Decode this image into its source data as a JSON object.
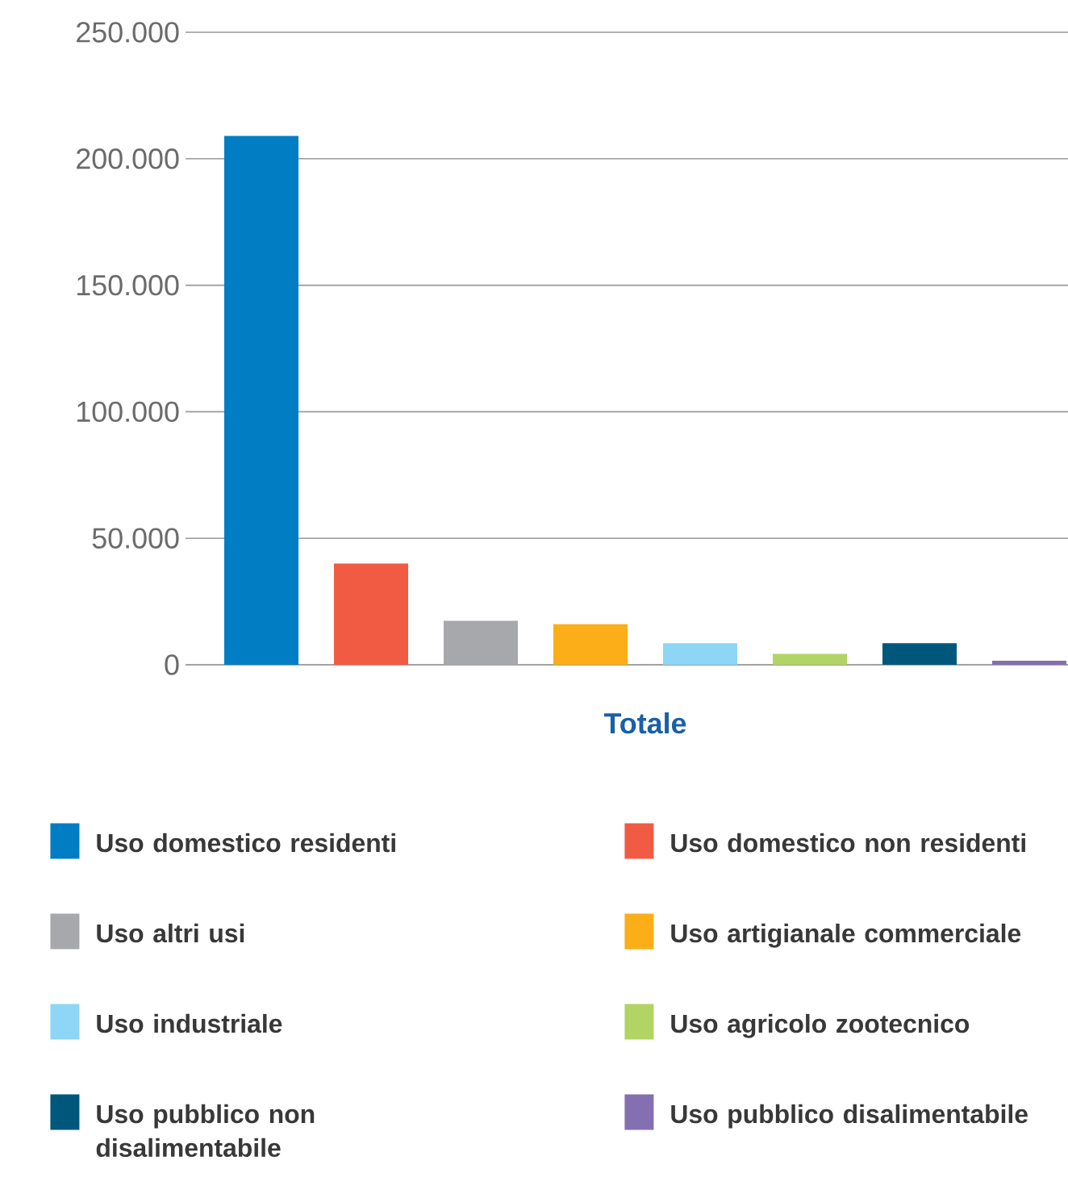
{
  "chart_data": {
    "type": "bar",
    "categories": [
      "Totale"
    ],
    "series": [
      {
        "name": "Uso domestico residenti",
        "color": "#007dc3",
        "values": [
          209000
        ]
      },
      {
        "name": "Uso domestico non residenti",
        "color": "#f15b43",
        "values": [
          40000
        ]
      },
      {
        "name": "Uso altri usi",
        "color": "#a7a8ab",
        "values": [
          17400
        ]
      },
      {
        "name": "Uso artigianale commerciale",
        "color": "#fbae17",
        "values": [
          16000
        ]
      },
      {
        "name": "Uso industriale",
        "color": "#8dd6f5",
        "values": [
          8500
        ]
      },
      {
        "name": "Uso agricolo zootecnico",
        "color": "#b1d464",
        "values": [
          4300
        ]
      },
      {
        "name": "Uso pubblico non disalimentabile",
        "color": "#00577c",
        "values": [
          8500
        ]
      },
      {
        "name": "Uso pubblico disalimentabile",
        "color": "#8470b0",
        "values": [
          1600
        ]
      }
    ],
    "ylim": [
      0,
      250000
    ],
    "yticks": [
      {
        "value": 0,
        "label": "0"
      },
      {
        "value": 50000,
        "label": "50.000"
      },
      {
        "value": 100000,
        "label": "100.000"
      },
      {
        "value": 150000,
        "label": "150.000"
      },
      {
        "value": 200000,
        "label": "200.000"
      },
      {
        "value": 250000,
        "label": "250.000"
      }
    ],
    "grid": "y",
    "legend": "bottom"
  }
}
